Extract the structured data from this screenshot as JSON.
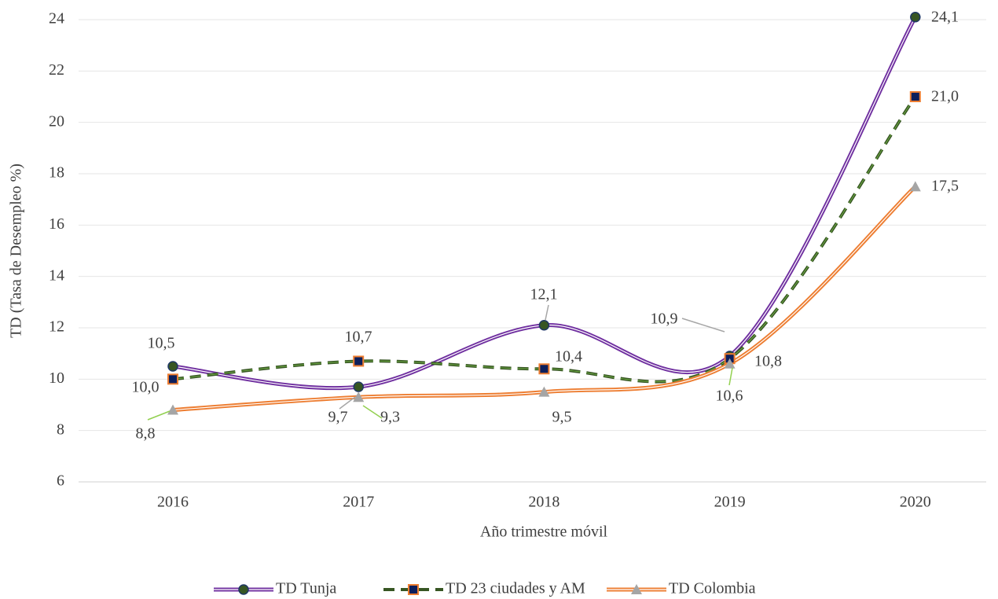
{
  "chart_data": {
    "type": "line",
    "x_label": "Año trimestre móvil",
    "y_label": "TD (Tasa de Desempleo %)",
    "categories": [
      "2016",
      "2017",
      "2018",
      "2019",
      "2020"
    ],
    "series": [
      {
        "name": "TD Tunja",
        "color": "#7030a0",
        "values": [
          10.5,
          9.7,
          12.1,
          10.9,
          24.1
        ],
        "value_labels": [
          "10,5",
          "9,7",
          "12,1",
          "10,9",
          "24,1"
        ]
      },
      {
        "name": "TD 23 ciudades y AM",
        "color": "#375623",
        "values": [
          10.0,
          10.7,
          10.4,
          10.8,
          21.0
        ],
        "value_labels": [
          "10,0",
          "10,7",
          "10,4",
          "10,8",
          "21,0"
        ]
      },
      {
        "name": "TD Colombia",
        "color": "#ed7d31",
        "values": [
          8.8,
          9.3,
          9.5,
          10.6,
          17.5
        ],
        "value_labels": [
          "8,8",
          "9,3",
          "9,5",
          "10,6",
          "17,5"
        ]
      }
    ],
    "ylim": [
      6,
      24
    ],
    "yticks": [
      6,
      8,
      10,
      12,
      14,
      16,
      18,
      20,
      22,
      24
    ],
    "grid": true,
    "legend": "bottom"
  }
}
